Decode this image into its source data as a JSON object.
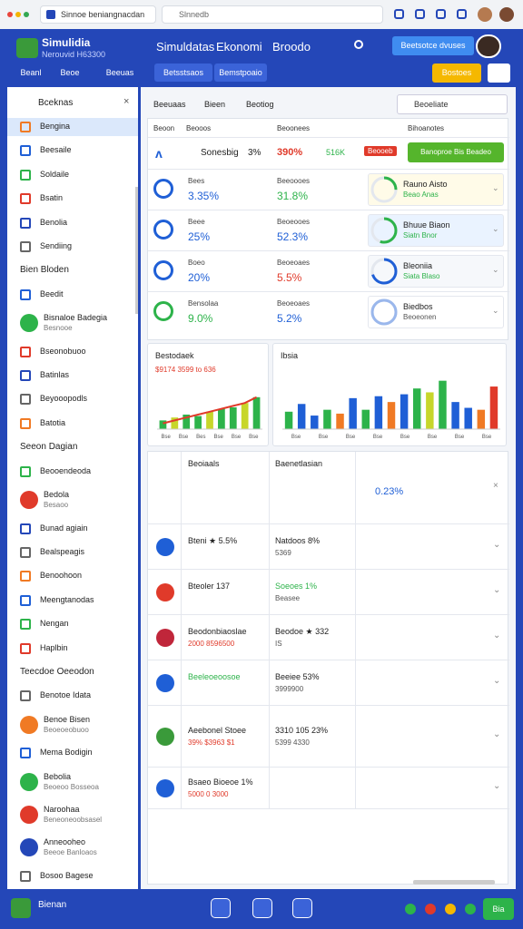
{
  "browser": {
    "tab": "Sinnoe beniangnacdan",
    "address": "Slnnedb"
  },
  "header": {
    "title": "Simulidia",
    "subtitle": "Nerouvid H63300",
    "nav": [
      "Simuldatas",
      "Ekonomi",
      "Broodo"
    ],
    "cta": "Beetsotce dvuses",
    "tabs": [
      "Beanl",
      "Beoe",
      "Beeuas",
      "Betsstsaos",
      "Bemstpoaio"
    ],
    "action": "Bostoes"
  },
  "sidebar": {
    "title": "Bceknas",
    "items": [
      {
        "label": "Bengina"
      },
      {
        "label": "Beesaile"
      },
      {
        "label": "Soldaile"
      },
      {
        "label": "Bsatin"
      },
      {
        "label": "Benolia"
      },
      {
        "label": "Sendiing"
      },
      {
        "section": "Bien Bloden"
      },
      {
        "label": "Beedit"
      },
      {
        "label": "Bisnaloe Badegia",
        "sub": "Besnooe"
      },
      {
        "label": "Bseonobuoo"
      },
      {
        "label": "Batinlas"
      },
      {
        "label": "Beyooopodls"
      },
      {
        "label": "Batotia"
      },
      {
        "section": "Seeon Dagian"
      },
      {
        "label": "Beooendeoda"
      },
      {
        "label": "Bedola",
        "sub": "Besaoo"
      },
      {
        "label": "Bunad agiain"
      },
      {
        "label": "Bealspeagis"
      },
      {
        "label": "Benoohoon"
      },
      {
        "label": "Meengtanodas"
      },
      {
        "label": "Nengan"
      },
      {
        "label": "Haplbin"
      },
      {
        "section": "Teecdoe Oeeodon"
      },
      {
        "label": "Benotoe Idata"
      },
      {
        "label": "Benoe Bisen",
        "sub": "Beoeoeobuoo"
      },
      {
        "label": "Mema Bodigin"
      },
      {
        "label": "Bebolia",
        "sub": "Beoeoo Bosseoa"
      },
      {
        "label": "Naroohaa",
        "sub": "Beneoneoobsasel"
      },
      {
        "label": "Anneooheo",
        "sub": "Beeoe Banloaos"
      },
      {
        "label": "Bosoo Bagese"
      }
    ]
  },
  "toolbar": {
    "filters": [
      "Beeuaas",
      "Bieen",
      "Beotiog"
    ],
    "search": "Beoeliate"
  },
  "table": {
    "columns": [
      "Beoon",
      "Beooos",
      "Beoonees",
      "Bihoanotes"
    ],
    "first": {
      "name": "Sonesbig",
      "a": "3%",
      "b": "390%",
      "c": "516K",
      "tag": "Beooeb",
      "button": "Banoproe Bis Beadeo"
    },
    "rows": [
      {
        "label": "Bees",
        "value": "3.35%",
        "label2": "Beeoooes",
        "value2": "31.8%",
        "status": "Rauno Aisto",
        "note": "Beao Anas",
        "progress": 25
      },
      {
        "label": "Beee",
        "value": "25%",
        "label2": "Beoeooes",
        "value2": "52.3%",
        "status": "Bhuue Biaon",
        "note": "Siatn Bnor",
        "progress": 55
      },
      {
        "label": "Boeo",
        "value": "20%",
        "label2": "Beoeoaes",
        "value2": "5.5%",
        "status": "Bleoniia",
        "note": "Siata Blaso",
        "progress": 70
      },
      {
        "label": "Bensolaa",
        "value": "9.0%",
        "label2": "Beoeoaes",
        "value2": "5.2%",
        "status": "Biedbos",
        "note": "Beoeonen",
        "progress": 100
      }
    ]
  },
  "charts": [
    {
      "title": "Bestodaek",
      "subtitle": "$9174 3599 to 636",
      "categories": [
        "Bse",
        "Bse",
        "Bes",
        "Bse",
        "Bse",
        "Bse"
      ],
      "ylim": [
        0,
        40
      ],
      "bars": [
        6,
        8,
        10,
        9,
        12,
        14,
        15,
        18,
        22
      ],
      "line": [
        4,
        6,
        8,
        10,
        12,
        14,
        16,
        18,
        22
      ]
    },
    {
      "title": "Ibsia",
      "categories": [
        "Bse",
        "Bse",
        "Bse",
        "Bse",
        "Bse",
        "Bse",
        "Bse",
        "Bse"
      ],
      "ylim": [
        0,
        60
      ],
      "bars": [
        18,
        26,
        14,
        20,
        16,
        32,
        20,
        34,
        28,
        36,
        42,
        38,
        50,
        28,
        22,
        20,
        44
      ],
      "colors": [
        "#2db34a",
        "#1f5fd6",
        "#1f5fd6",
        "#2db34a",
        "#f07a24",
        "#1f5fd6",
        "#2db34a",
        "#1f5fd6",
        "#f07a24",
        "#1f5fd6",
        "#2db34a",
        "#c7d62a",
        "#2db34a",
        "#1f5fd6",
        "#1f5fd6",
        "#f07a24",
        "#e03a2a"
      ]
    }
  ],
  "lower": {
    "rows": [
      {
        "c1": "Beoiaals",
        "c2": "Baenetlasian",
        "c3": "0.23%"
      },
      {
        "c1": "Bteni ★ 5.5%",
        "c2": "Natdoos 8%",
        "c2b": "5369"
      },
      {
        "c1": "Bteoler 137",
        "c2": "Soeoes 1%",
        "c2b": "Beasee"
      },
      {
        "c1": "Beodonbiaoslae",
        "c1b": "2000 8596500",
        "c2": "Beodoe ★ 332",
        "c2b": "IS"
      },
      {
        "c1": "Beeleoeoosoe",
        "c2": "Beeiee 53%",
        "c2b": "3999900"
      },
      {
        "c1": "Aeebonel Stoee",
        "c1b": "39% $3963 $1",
        "c2": "3310 105 23%",
        "c2b": "5399 4330"
      },
      {
        "c1": "Bsaeo Bioeoe 1%",
        "c1b": "5000 0 3000"
      }
    ]
  },
  "footer": {
    "brand": "Bienan",
    "button": "Bia"
  }
}
